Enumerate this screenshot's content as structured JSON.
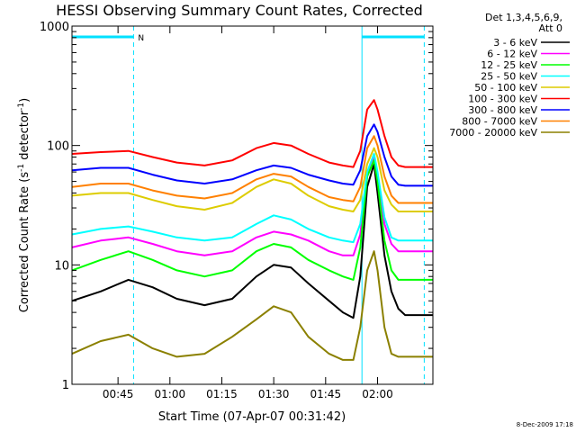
{
  "chart_data": {
    "type": "line",
    "title": "HESSI Observing Summary Count Rates, Corrected",
    "xlabel": "Start Time (07-Apr-07 00:31:42)",
    "ylabel_main": "Corrected Count Rate (s",
    "ylabel_sup1": "-1",
    "ylabel_mid": " detector",
    "ylabel_sup2": "-1",
    "ylabel_end": ")",
    "yscale": "log",
    "ylim": [
      1,
      1000
    ],
    "xlim_minutes": [
      31.7,
      136
    ],
    "xticks": [
      {
        "label": "00:45",
        "minute": 45
      },
      {
        "label": "01:00",
        "minute": 60
      },
      {
        "label": "01:15",
        "minute": 75
      },
      {
        "label": "01:30",
        "minute": 90
      },
      {
        "label": "01:45",
        "minute": 105
      },
      {
        "label": "02:00",
        "minute": 120
      }
    ],
    "yticks": [
      {
        "label": "1",
        "value": 1
      },
      {
        "label": "10",
        "value": 10
      },
      {
        "label": "100",
        "value": 100
      },
      {
        "label": "1000",
        "value": 1000
      }
    ],
    "legend_header": [
      "Det 1,3,4,5,6,9,",
      "Att 0"
    ],
    "night_label": "N",
    "night_intervals": [
      [
        31.7,
        49.5
      ],
      [
        115.5,
        133.5
      ]
    ],
    "date_stamp": "8-Dec-2009 17:18",
    "series": [
      {
        "name": "3 - 6 keV",
        "color": "#000000",
        "x": [
          31.7,
          40,
          48,
          55,
          62,
          70,
          78,
          85,
          90,
          95,
          100,
          106,
          110,
          113,
          115,
          117,
          119,
          120,
          122,
          124,
          126,
          128,
          136
        ],
        "y": [
          5,
          6,
          7.5,
          6.5,
          5.2,
          4.6,
          5.2,
          8,
          10,
          9.5,
          7,
          5,
          4,
          3.6,
          8,
          45,
          70,
          40,
          12,
          6,
          4.3,
          3.8,
          3.8
        ]
      },
      {
        "name": "6 - 12 keV",
        "color": "#ff00ff",
        "x": [
          31.7,
          40,
          48,
          55,
          62,
          70,
          78,
          85,
          90,
          95,
          100,
          106,
          110,
          113,
          115,
          117,
          119,
          120,
          122,
          124,
          126,
          128,
          136
        ],
        "y": [
          14,
          16,
          17,
          15,
          13,
          12,
          13,
          17,
          19,
          18,
          16,
          13,
          12,
          12,
          18,
          60,
          80,
          55,
          22,
          15,
          13,
          13,
          13
        ]
      },
      {
        "name": "12 - 25 keV",
        "color": "#00ff00",
        "x": [
          31.7,
          40,
          48,
          55,
          62,
          70,
          78,
          85,
          90,
          95,
          100,
          106,
          110,
          113,
          115,
          117,
          119,
          120,
          122,
          124,
          126,
          128,
          136
        ],
        "y": [
          9,
          11,
          13,
          11,
          9,
          8,
          9,
          13,
          15,
          14,
          11,
          9,
          8,
          7.5,
          14,
          55,
          75,
          50,
          16,
          9,
          7.5,
          7.5,
          7.5
        ]
      },
      {
        "name": "25 - 50 keV",
        "color": "#00ffff",
        "x": [
          31.7,
          40,
          48,
          55,
          62,
          70,
          78,
          85,
          90,
          95,
          100,
          106,
          110,
          113,
          115,
          117,
          119,
          120,
          122,
          124,
          126,
          128,
          136
        ],
        "y": [
          18,
          20,
          21,
          19,
          17,
          16,
          17,
          22,
          26,
          24,
          20,
          17,
          16,
          15.5,
          22,
          60,
          85,
          60,
          25,
          17,
          16,
          16,
          16
        ]
      },
      {
        "name": "50 - 100 keV",
        "color": "#ddcc00",
        "x": [
          31.7,
          40,
          48,
          55,
          62,
          70,
          78,
          85,
          90,
          95,
          100,
          106,
          110,
          113,
          115,
          117,
          119,
          120,
          122,
          124,
          126,
          128,
          136
        ],
        "y": [
          38,
          40,
          40,
          35,
          31,
          29,
          33,
          45,
          52,
          48,
          38,
          31,
          29,
          28,
          35,
          70,
          95,
          80,
          42,
          32,
          28,
          28,
          28
        ]
      },
      {
        "name": "100 - 300 keV",
        "color": "#ff0000",
        "x": [
          31.7,
          40,
          48,
          55,
          62,
          70,
          78,
          85,
          90,
          95,
          100,
          106,
          110,
          113,
          115,
          117,
          119,
          120,
          122,
          124,
          126,
          128,
          136
        ],
        "y": [
          85,
          88,
          90,
          80,
          72,
          68,
          75,
          95,
          105,
          100,
          85,
          72,
          68,
          66,
          90,
          200,
          240,
          200,
          120,
          80,
          68,
          66,
          66
        ]
      },
      {
        "name": "300 - 800 keV",
        "color": "#0000ff",
        "x": [
          31.7,
          40,
          48,
          55,
          62,
          70,
          78,
          85,
          90,
          95,
          100,
          106,
          110,
          113,
          115,
          117,
          119,
          120,
          122,
          124,
          126,
          128,
          136
        ],
        "y": [
          62,
          65,
          65,
          57,
          51,
          48,
          52,
          62,
          68,
          65,
          57,
          51,
          48,
          47,
          62,
          120,
          150,
          130,
          80,
          55,
          47,
          46,
          46
        ]
      },
      {
        "name": "800 - 7000 keV",
        "color": "#ff8000",
        "x": [
          31.7,
          40,
          48,
          55,
          62,
          70,
          78,
          85,
          90,
          95,
          100,
          106,
          110,
          113,
          115,
          117,
          119,
          120,
          122,
          124,
          126,
          128,
          136
        ],
        "y": [
          45,
          48,
          48,
          42,
          38,
          36,
          40,
          52,
          58,
          55,
          45,
          37,
          35,
          34,
          45,
          95,
          120,
          100,
          55,
          38,
          33,
          33,
          33
        ]
      },
      {
        "name": "7000 - 20000 keV",
        "color": "#8b8000",
        "x": [
          31.7,
          40,
          48,
          55,
          62,
          70,
          78,
          85,
          90,
          95,
          100,
          106,
          110,
          113,
          115,
          117,
          119,
          120,
          122,
          124,
          126,
          128,
          136
        ],
        "y": [
          1.8,
          2.3,
          2.6,
          2.0,
          1.7,
          1.8,
          2.5,
          3.5,
          4.5,
          4.0,
          2.5,
          1.8,
          1.6,
          1.6,
          3,
          9,
          13,
          9,
          3,
          1.8,
          1.7,
          1.7,
          1.7
        ]
      }
    ]
  }
}
